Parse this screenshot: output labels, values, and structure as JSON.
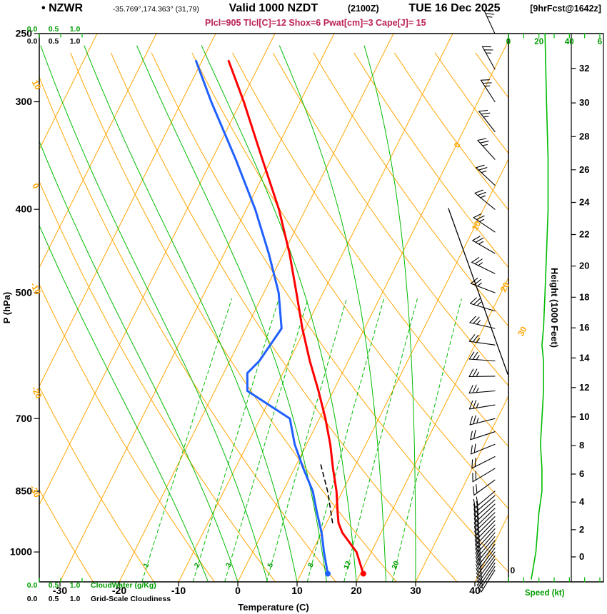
{
  "header": {
    "bullet": "•",
    "station": "NZWR",
    "coords": "-35.769°,174.363° (31,79)",
    "valid_prefix": "Valid 1000 NZDT",
    "valid_zulu": "(2100Z)",
    "valid_date": "TUE 16 Dec 2025",
    "forecast_tag": "[9hrFcst@1642z]",
    "params_line": "Plcl=905 Tlcl[C]=12 Shox=6 Pwat[cm]=3 Cape[J]= 15"
  },
  "indices": {
    "Plcl": 905,
    "Tlcl_C": 12,
    "Shox": 6,
    "Pwat_cm": 3,
    "Cape_J": 15
  },
  "axes": {
    "pressure_axis_label": "P (hPa)",
    "pressure_ticks": [
      250,
      300,
      400,
      500,
      700,
      850,
      1000
    ],
    "temperature_axis_label": "Temperature (C)",
    "temperature_ticks": [
      -30,
      -20,
      -10,
      0,
      10,
      20,
      30,
      40
    ],
    "height_axis_label": "Height (1000 Feet)",
    "height_ticks": [
      0,
      2,
      4,
      6,
      8,
      10,
      12,
      14,
      16,
      18,
      20,
      22,
      24,
      26,
      28,
      30,
      32
    ],
    "speed_axis_label": "Speed (kt)",
    "speed_scale_labels": [
      "0",
      "20",
      "40",
      "6"
    ],
    "speed_scale_bottom_label": "0",
    "cloudwater_scale": [
      "0.0",
      "0.5",
      "1.0"
    ],
    "cloudwater_label": "CloudWater (g/Kg)",
    "cloudiness_scale": [
      "0.0",
      "0.5",
      "1.0"
    ],
    "cloudiness_label": "Grid-Scale Cloudiness"
  },
  "colors": {
    "orange": "#ffa500",
    "green_line": "#00bb00",
    "green_text": "#009c00",
    "red": "#ff0000",
    "blue": "#2060ff",
    "params_crimson": "#bb2255",
    "black": "#000000"
  },
  "chart_data": {
    "type": "line",
    "subtype": "skew-t-log-p-sounding",
    "title": "NZWR forecast sounding valid 1000 NZDT (2100Z) TUE 16 Dec 2025, 9hr forecast",
    "pressure_axis_hpa": [
      250,
      1083
    ],
    "temperature_axis_c": [
      -30,
      40
    ],
    "height_axis_kft": [
      0,
      32
    ],
    "speed_axis_kt": [
      0,
      60
    ],
    "grid": {
      "isotherm_step_c": 10,
      "isotherm_labels_c": [
        0,
        10,
        20,
        30
      ],
      "dry_adiabat_labels_c": [
        10,
        0,
        -10,
        -20,
        -30
      ],
      "mixing_ratio_g_kg": [
        1,
        2,
        3,
        5,
        8,
        12,
        20
      ],
      "moist_adiabat_start_c": [
        -5,
        0,
        5,
        10,
        15,
        20,
        25,
        30
      ]
    },
    "surface": {
      "pressure_hpa": 1060,
      "temperature_c": 20.5,
      "dewpoint_c": 14.5
    },
    "temperature_curve": [
      [
        1060,
        20.5
      ],
      [
        1000,
        17.5
      ],
      [
        950,
        13.5
      ],
      [
        925,
        12
      ],
      [
        900,
        11
      ],
      [
        850,
        9
      ],
      [
        800,
        6.5
      ],
      [
        750,
        4
      ],
      [
        700,
        1
      ],
      [
        650,
        -2.5
      ],
      [
        600,
        -6.5
      ],
      [
        550,
        -10.5
      ],
      [
        500,
        -14.5
      ],
      [
        450,
        -19
      ],
      [
        400,
        -24.5
      ],
      [
        350,
        -31.5
      ],
      [
        300,
        -39.5
      ],
      [
        269,
        -45.5
      ]
    ],
    "dewpoint_curve": [
      [
        1060,
        14.5
      ],
      [
        1000,
        12
      ],
      [
        950,
        10
      ],
      [
        900,
        7.5
      ],
      [
        850,
        5
      ],
      [
        800,
        1.5
      ],
      [
        750,
        -2
      ],
      [
        700,
        -5
      ],
      [
        650,
        -14.5
      ],
      [
        620,
        -16
      ],
      [
        600,
        -15
      ],
      [
        550,
        -14
      ],
      [
        500,
        -17.5
      ],
      [
        450,
        -22.5
      ],
      [
        400,
        -28.5
      ],
      [
        350,
        -36
      ],
      [
        300,
        -45
      ],
      [
        269,
        -51
      ]
    ],
    "parcel_trace": [
      [
        925,
        11
      ],
      [
        850,
        7.5
      ],
      [
        790,
        4
      ]
    ],
    "wind_speed_profile_p_kt": [
      [
        1075,
        15
      ],
      [
        1050,
        16
      ],
      [
        1000,
        18
      ],
      [
        950,
        19
      ],
      [
        900,
        20
      ],
      [
        850,
        22
      ],
      [
        800,
        22
      ],
      [
        750,
        21
      ],
      [
        700,
        22
      ],
      [
        650,
        23
      ],
      [
        600,
        23
      ],
      [
        575,
        22
      ],
      [
        550,
        23
      ],
      [
        500,
        24
      ],
      [
        450,
        25
      ],
      [
        400,
        26
      ],
      [
        350,
        26
      ],
      [
        300,
        25
      ],
      [
        250,
        24
      ]
    ],
    "wind_barbs_p_dir_kt": [
      [
        1050,
        212,
        16
      ],
      [
        1040,
        213,
        16
      ],
      [
        1030,
        214,
        17
      ],
      [
        1020,
        215,
        17
      ],
      [
        1010,
        216,
        17
      ],
      [
        1000,
        217,
        18
      ],
      [
        990,
        217,
        18
      ],
      [
        980,
        218,
        18
      ],
      [
        970,
        219,
        18
      ],
      [
        960,
        220,
        19
      ],
      [
        950,
        221,
        19
      ],
      [
        940,
        222,
        19
      ],
      [
        930,
        223,
        20
      ],
      [
        920,
        224,
        20
      ],
      [
        910,
        225,
        20
      ],
      [
        900,
        226,
        20
      ],
      [
        890,
        226,
        21
      ],
      [
        880,
        227,
        21
      ],
      [
        870,
        228,
        21
      ],
      [
        860,
        229,
        21
      ],
      [
        850,
        230,
        22
      ],
      [
        825,
        234,
        22
      ],
      [
        800,
        239,
        22
      ],
      [
        775,
        243,
        22
      ],
      [
        750,
        248,
        22
      ],
      [
        725,
        252,
        22
      ],
      [
        700,
        256,
        23
      ],
      [
        675,
        261,
        23
      ],
      [
        650,
        265,
        23
      ],
      [
        625,
        269,
        23
      ],
      [
        600,
        274,
        23
      ],
      [
        575,
        278,
        23
      ],
      [
        550,
        283,
        24
      ],
      [
        525,
        287,
        24
      ],
      [
        500,
        291,
        24
      ],
      [
        475,
        296,
        24
      ],
      [
        450,
        300,
        24
      ],
      [
        425,
        304,
        25
      ],
      [
        400,
        309,
        25
      ],
      [
        375,
        313,
        25
      ],
      [
        350,
        318,
        25
      ],
      [
        325,
        322,
        25
      ],
      [
        300,
        327,
        25
      ],
      [
        275,
        331,
        25
      ],
      [
        250,
        335,
        24
      ]
    ],
    "has_divider_line": true
  }
}
